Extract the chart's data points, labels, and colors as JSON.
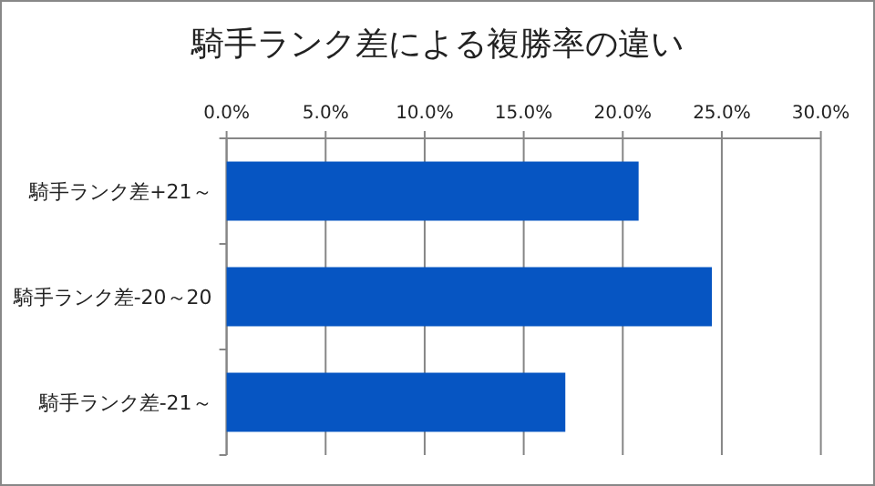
{
  "chart_data": {
    "type": "bar",
    "orientation": "horizontal",
    "title": "騎手ランク差による複勝率の違い",
    "categories": [
      "騎手ランク差+21～",
      "騎手ランク差-20～20",
      "騎手ランク差-21～"
    ],
    "values": [
      20.8,
      24.5,
      17.1
    ],
    "color": "#0655c2",
    "xlim": [
      0,
      30
    ],
    "xticks": [
      {
        "value": 0,
        "label": "0.0%"
      },
      {
        "value": 5,
        "label": "5.0%"
      },
      {
        "value": 10,
        "label": "10.0%"
      },
      {
        "value": 15,
        "label": "15.0%"
      },
      {
        "value": 20,
        "label": "20.0%"
      },
      {
        "value": 25,
        "label": "25.0%"
      },
      {
        "value": 30,
        "label": "30.0%"
      }
    ],
    "grid": "x"
  }
}
